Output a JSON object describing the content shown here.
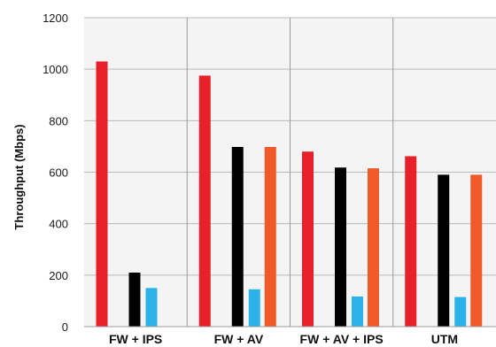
{
  "chart_data": {
    "type": "bar",
    "title": "",
    "xlabel": "",
    "ylabel": "Throughput (Mbps)",
    "ylim": [
      0,
      1200
    ],
    "yticks": [
      0,
      200,
      400,
      600,
      800,
      1000,
      1200
    ],
    "grid": true,
    "legend": "none",
    "categories": [
      "FW + IPS",
      "FW + AV",
      "FW + AV + IPS",
      "UTM"
    ],
    "series": [
      {
        "color": "#e8202a",
        "values": [
          1030,
          975,
          680,
          662
        ]
      },
      {
        "color": "#000000",
        "values": [
          210,
          698,
          618,
          590
        ]
      },
      {
        "color": "#2bb2e8",
        "values": [
          150,
          145,
          117,
          115
        ]
      },
      {
        "color": "#f05a28",
        "values": [
          null,
          698,
          615,
          590
        ]
      }
    ]
  }
}
